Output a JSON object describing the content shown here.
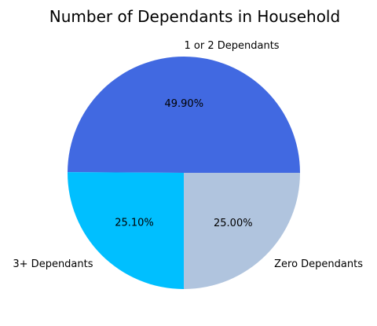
{
  "chart_data": {
    "type": "pie",
    "title": "Number of Dependants in Household",
    "slices": [
      {
        "label": "1 or 2 Dependants",
        "value": 49.9,
        "pct_label": "49.90%",
        "color": "#4169E1"
      },
      {
        "label": "3+ Dependants",
        "value": 25.1,
        "pct_label": "25.10%",
        "color": "#00BFFF"
      },
      {
        "label": "Zero Dependants",
        "value": 25.0,
        "pct_label": "25.00%",
        "color": "#B0C4DE"
      }
    ]
  }
}
